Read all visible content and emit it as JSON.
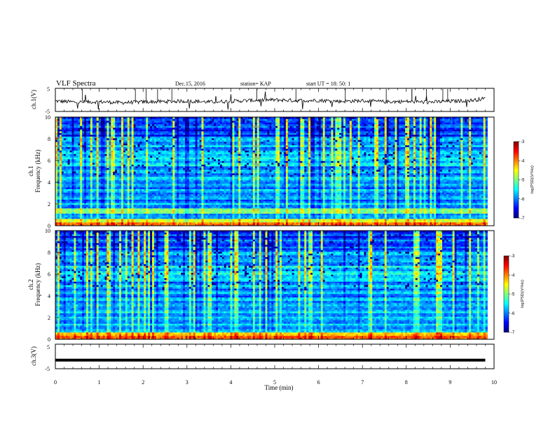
{
  "header": {
    "title": "VLF Spectra",
    "date": "Dec.15, 2016",
    "station": "station= KAP",
    "start": "start  UT =   18: 50: 1"
  },
  "colors": {
    "jet_dark_blue": "#00007f",
    "jet_blue": "#0000ff",
    "jet_cyan": "#00ffff",
    "jet_green": "#7fff7f",
    "jet_yellow": "#ffff00",
    "jet_red": "#ff0000",
    "jet_dark_red": "#7f0000",
    "trace": "#000000"
  },
  "chart_data": [
    {
      "type": "line",
      "name": "ch1-waveform",
      "ylabel": "ch.1(V)",
      "ylim": [
        -5,
        5
      ],
      "yticks": [
        "5",
        "-5"
      ],
      "x": [
        0,
        0.5,
        1,
        1.5,
        2,
        2.5,
        3,
        3.5,
        4,
        4.5,
        5,
        5.5,
        6,
        6.5,
        7,
        7.5,
        8,
        8.5,
        9,
        9.5,
        9.8
      ],
      "values": [
        -0.5,
        -1.0,
        -0.8,
        -1.2,
        -0.9,
        -0.7,
        -0.5,
        -0.9,
        -0.6,
        -0.2,
        0.0,
        -0.3,
        -0.2,
        -0.6,
        -0.4,
        -0.8,
        -0.7,
        -1.0,
        -0.6,
        -0.2,
        0.6
      ]
    },
    {
      "type": "heatmap",
      "name": "ch1-spectrogram",
      "ylabel_top": "ch.1",
      "ylabel": "Frequency (kHz)",
      "ylim": [
        0,
        10
      ],
      "yticks": [
        "0",
        "2",
        "4",
        "6",
        "8",
        "10"
      ],
      "colorbar": {
        "label": "log(PSD)(V²/Hz)",
        "range": [
          -7,
          -3
        ],
        "ticks": [
          "-3",
          "-4",
          "-5",
          "-6",
          "-7"
        ]
      }
    },
    {
      "type": "heatmap",
      "name": "ch2-spectrogram",
      "ylabel_top": "ch.2",
      "ylabel": "Frequency (kHz)",
      "ylim": [
        0,
        10
      ],
      "yticks": [
        "0",
        "2",
        "4",
        "6",
        "8",
        "10"
      ],
      "colorbar": {
        "label": "log(PSD)(V²/Hz)",
        "range": [
          -7,
          -3
        ],
        "ticks": [
          "-3",
          "-4",
          "-5",
          "-6",
          "-7"
        ]
      }
    },
    {
      "type": "line",
      "name": "ch3-waveform",
      "ylabel": "ch.3(V)",
      "ylim": [
        -5,
        5
      ],
      "yticks": [
        "5",
        "-5"
      ],
      "x": [
        0,
        9.8
      ],
      "values": [
        -1.5,
        -1.5
      ]
    }
  ],
  "xaxis": {
    "label": "Time  (min)",
    "range": [
      0,
      10
    ],
    "ticks": [
      "0",
      "1",
      "2",
      "3",
      "4",
      "5",
      "6",
      "7",
      "8",
      "9",
      "10"
    ]
  }
}
